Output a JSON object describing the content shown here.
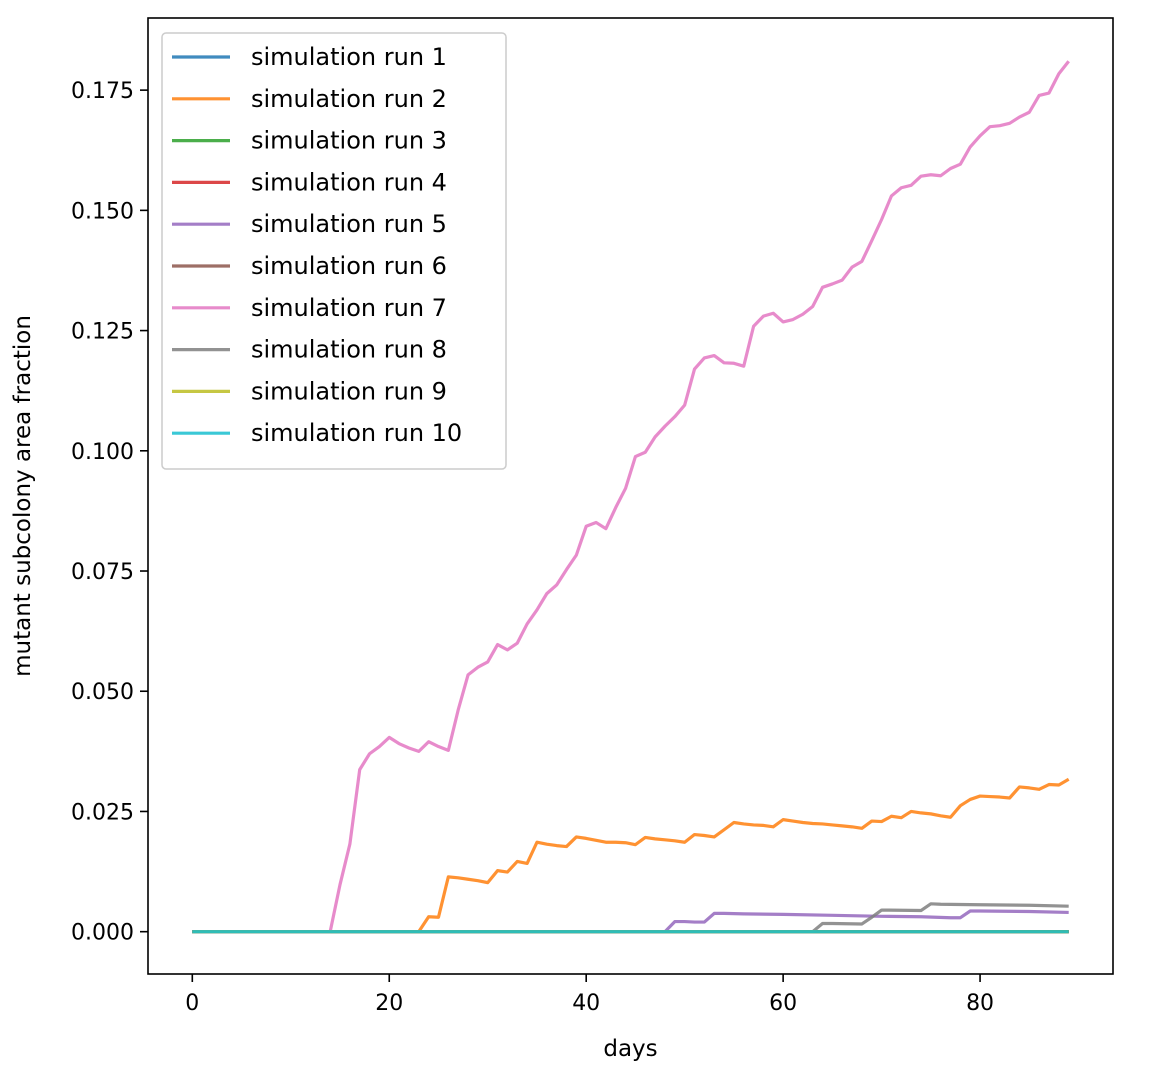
{
  "chart_data": {
    "type": "line",
    "title": "",
    "xlabel": "days",
    "ylabel": "mutant subcolony area fraction",
    "xlim": [
      -4.5,
      93.5
    ],
    "ylim": [
      -0.0088,
      0.19
    ],
    "xticks": [
      0,
      20,
      40,
      60,
      80
    ],
    "yticks": [
      0.0,
      0.025,
      0.05,
      0.075,
      0.1,
      0.125,
      0.15,
      0.175
    ],
    "ytick_labels": [
      "0.000",
      "0.025",
      "0.050",
      "0.075",
      "0.100",
      "0.125",
      "0.150",
      "0.175"
    ],
    "grid": false,
    "legend_position": "top-left",
    "series": [
      {
        "name": "simulation run 1",
        "color": "#1f77b4",
        "points": [
          [
            0,
            0
          ],
          [
            89,
            0
          ]
        ]
      },
      {
        "name": "simulation run 2",
        "color": "#ff7f0e",
        "points": [
          [
            0,
            0
          ],
          [
            23,
            0
          ],
          [
            24,
            0.0031
          ],
          [
            25,
            0.003
          ],
          [
            26,
            0.0114
          ],
          [
            27,
            0.0112
          ],
          [
            28,
            0.0109
          ],
          [
            29,
            0.0106
          ],
          [
            30,
            0.0102
          ],
          [
            31,
            0.0127
          ],
          [
            32,
            0.0124
          ],
          [
            33,
            0.0146
          ],
          [
            34,
            0.0142
          ],
          [
            35,
            0.0186
          ],
          [
            36,
            0.0182
          ],
          [
            37,
            0.0179
          ],
          [
            38,
            0.0177
          ],
          [
            39,
            0.0197
          ],
          [
            40,
            0.0194
          ],
          [
            41,
            0.019
          ],
          [
            42,
            0.0186
          ],
          [
            43,
            0.0186
          ],
          [
            44,
            0.0185
          ],
          [
            45,
            0.0181
          ],
          [
            46,
            0.0196
          ],
          [
            47,
            0.0193
          ],
          [
            48,
            0.0191
          ],
          [
            49,
            0.0189
          ],
          [
            50,
            0.0186
          ],
          [
            51,
            0.0202
          ],
          [
            52,
            0.02
          ],
          [
            53,
            0.0197
          ],
          [
            54,
            0.0212
          ],
          [
            55,
            0.0227
          ],
          [
            56,
            0.0224
          ],
          [
            57,
            0.0222
          ],
          [
            58,
            0.0221
          ],
          [
            59,
            0.0218
          ],
          [
            60,
            0.0233
          ],
          [
            61,
            0.023
          ],
          [
            62,
            0.0227
          ],
          [
            63,
            0.0225
          ],
          [
            64,
            0.0224
          ],
          [
            65,
            0.0222
          ],
          [
            66,
            0.022
          ],
          [
            67,
            0.0218
          ],
          [
            68,
            0.0215
          ],
          [
            69,
            0.023
          ],
          [
            70,
            0.0229
          ],
          [
            71,
            0.024
          ],
          [
            72,
            0.0237
          ],
          [
            73,
            0.025
          ],
          [
            74,
            0.0247
          ],
          [
            75,
            0.0245
          ],
          [
            76,
            0.0241
          ],
          [
            77,
            0.0238
          ],
          [
            78,
            0.0262
          ],
          [
            79,
            0.0275
          ],
          [
            80,
            0.0282
          ],
          [
            81,
            0.0281
          ],
          [
            82,
            0.028
          ],
          [
            83,
            0.0278
          ],
          [
            84,
            0.0301
          ],
          [
            85,
            0.0299
          ],
          [
            86,
            0.0296
          ],
          [
            87,
            0.0306
          ],
          [
            88,
            0.0305
          ],
          [
            89,
            0.0317
          ]
        ]
      },
      {
        "name": "simulation run 3",
        "color": "#2ca02c",
        "points": [
          [
            0,
            0
          ],
          [
            89,
            0
          ]
        ]
      },
      {
        "name": "simulation run 4",
        "color": "#d62728",
        "points": [
          [
            0,
            0
          ],
          [
            89,
            0
          ]
        ]
      },
      {
        "name": "simulation run 5",
        "color": "#9467bd",
        "points": [
          [
            0,
            0
          ],
          [
            48,
            0
          ],
          [
            49,
            0.0021
          ],
          [
            50,
            0.0021
          ],
          [
            51,
            0.002
          ],
          [
            52,
            0.002
          ],
          [
            53,
            0.0038
          ],
          [
            54,
            0.0038
          ],
          [
            56,
            0.0037
          ],
          [
            60,
            0.0036
          ],
          [
            65,
            0.0034
          ],
          [
            70,
            0.0032
          ],
          [
            74,
            0.0031
          ],
          [
            77,
            0.0029
          ],
          [
            78,
            0.0029
          ],
          [
            79,
            0.0043
          ],
          [
            80,
            0.0043
          ],
          [
            85,
            0.0042
          ],
          [
            89,
            0.004
          ]
        ]
      },
      {
        "name": "simulation run 6",
        "color": "#8c564b",
        "points": [
          [
            0,
            0
          ],
          [
            89,
            0
          ]
        ]
      },
      {
        "name": "simulation run 7",
        "color": "#e377c2",
        "points": [
          [
            0,
            0
          ],
          [
            14,
            0
          ],
          [
            15,
            0.0098
          ],
          [
            16,
            0.0182
          ],
          [
            17,
            0.0337
          ],
          [
            18,
            0.037
          ],
          [
            19,
            0.0385
          ],
          [
            20,
            0.0404
          ],
          [
            21,
            0.0391
          ],
          [
            22,
            0.0382
          ],
          [
            23,
            0.0375
          ],
          [
            24,
            0.0395
          ],
          [
            25,
            0.0385
          ],
          [
            26,
            0.0377
          ],
          [
            27,
            0.0461
          ],
          [
            28,
            0.0534
          ],
          [
            29,
            0.055
          ],
          [
            30,
            0.0561
          ],
          [
            31,
            0.0597
          ],
          [
            32,
            0.0586
          ],
          [
            33,
            0.06
          ],
          [
            34,
            0.064
          ],
          [
            35,
            0.0669
          ],
          [
            36,
            0.0703
          ],
          [
            37,
            0.0721
          ],
          [
            38,
            0.0753
          ],
          [
            39,
            0.0783
          ],
          [
            40,
            0.0843
          ],
          [
            41,
            0.0851
          ],
          [
            42,
            0.0838
          ],
          [
            43,
            0.0882
          ],
          [
            44,
            0.0922
          ],
          [
            45,
            0.0988
          ],
          [
            46,
            0.0997
          ],
          [
            47,
            0.1029
          ],
          [
            48,
            0.1051
          ],
          [
            49,
            0.1071
          ],
          [
            50,
            0.1095
          ],
          [
            51,
            0.117
          ],
          [
            52,
            0.1193
          ],
          [
            53,
            0.1198
          ],
          [
            54,
            0.1183
          ],
          [
            55,
            0.1182
          ],
          [
            56,
            0.1176
          ],
          [
            57,
            0.1259
          ],
          [
            58,
            0.128
          ],
          [
            59,
            0.1286
          ],
          [
            60,
            0.1268
          ],
          [
            61,
            0.1273
          ],
          [
            62,
            0.1284
          ],
          [
            63,
            0.13
          ],
          [
            64,
            0.134
          ],
          [
            65,
            0.1347
          ],
          [
            66,
            0.1355
          ],
          [
            67,
            0.1382
          ],
          [
            68,
            0.1394
          ],
          [
            69,
            0.1437
          ],
          [
            70,
            0.1481
          ],
          [
            71,
            0.153
          ],
          [
            72,
            0.1547
          ],
          [
            73,
            0.1552
          ],
          [
            74,
            0.1571
          ],
          [
            75,
            0.1574
          ],
          [
            76,
            0.1572
          ],
          [
            77,
            0.1587
          ],
          [
            78,
            0.1596
          ],
          [
            79,
            0.1632
          ],
          [
            80,
            0.1655
          ],
          [
            81,
            0.1674
          ],
          [
            82,
            0.1676
          ],
          [
            83,
            0.1681
          ],
          [
            84,
            0.1694
          ],
          [
            85,
            0.1704
          ],
          [
            86,
            0.1739
          ],
          [
            87,
            0.1744
          ],
          [
            88,
            0.1784
          ],
          [
            89,
            0.181
          ]
        ]
      },
      {
        "name": "simulation run 8",
        "color": "#7f7f7f",
        "points": [
          [
            0,
            0
          ],
          [
            63,
            0
          ],
          [
            64,
            0.0017
          ],
          [
            65,
            0.0017
          ],
          [
            68,
            0.0016
          ],
          [
            69,
            0.003
          ],
          [
            70,
            0.0045
          ],
          [
            74,
            0.0044
          ],
          [
            75,
            0.0058
          ],
          [
            76,
            0.0057
          ],
          [
            80,
            0.0056
          ],
          [
            85,
            0.0055
          ],
          [
            89,
            0.0053
          ]
        ]
      },
      {
        "name": "simulation run 9",
        "color": "#bcbd22",
        "points": [
          [
            0,
            0
          ],
          [
            89,
            0
          ]
        ]
      },
      {
        "name": "simulation run 10",
        "color": "#17becf",
        "points": [
          [
            0,
            0
          ],
          [
            89,
            0
          ]
        ]
      }
    ]
  }
}
